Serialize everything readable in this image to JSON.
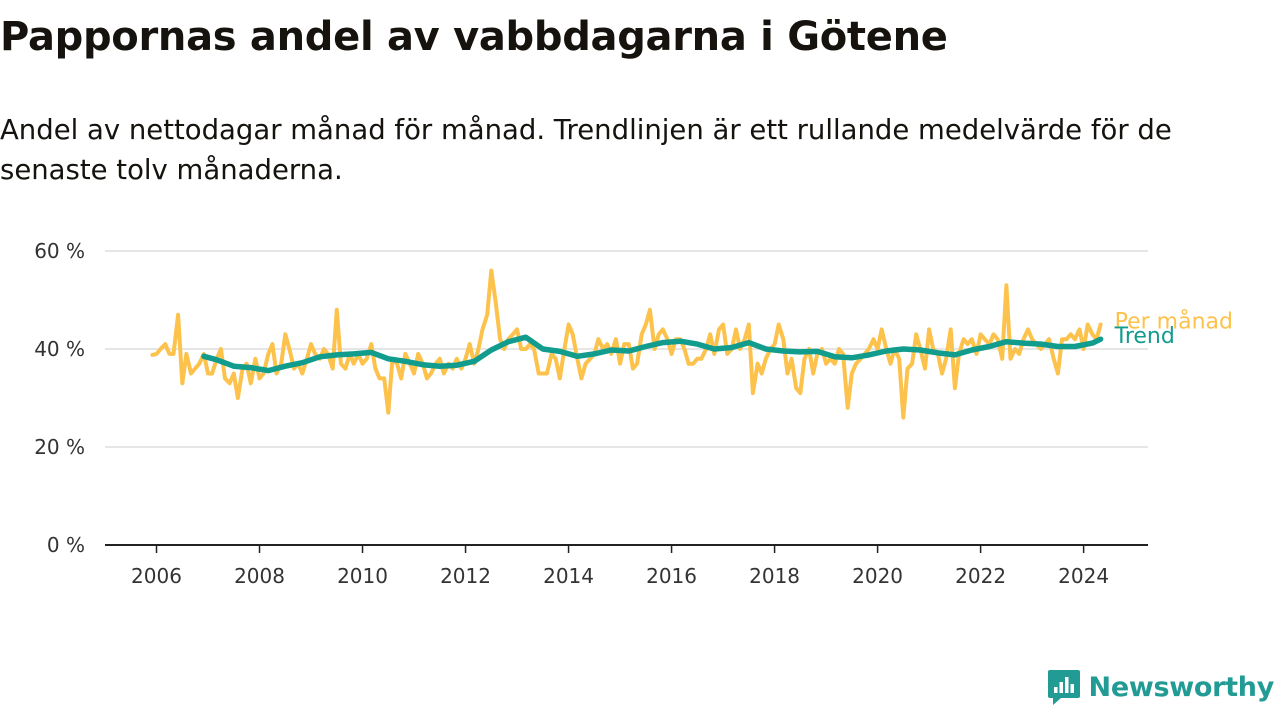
{
  "header": {
    "title": "Pappornas andel av vabbdagarna i Götene",
    "subtitle": "Andel av nettodagar månad för månad. Trendlinjen är ett rullande medelvärde för de senaste tolv månaderna."
  },
  "brand": {
    "name": "Newsworthy",
    "icon": "newsworthy-logo-icon",
    "color": "#229b95"
  },
  "colors": {
    "monthly": "#fcc24c",
    "trend": "#129c8e",
    "grid": "#dddddd",
    "axis": "#222222"
  },
  "chart_data": {
    "type": "line",
    "title": "Pappornas andel av vabbdagarna i Götene",
    "xlabel": "",
    "ylabel": "",
    "x_ticks": [
      "2006",
      "2008",
      "2010",
      "2012",
      "2014",
      "2016",
      "2018",
      "2020",
      "2022",
      "2024"
    ],
    "y_ticks": [
      "0 %",
      "20 %",
      "40 %",
      "60 %"
    ],
    "xlim": [
      2005.0,
      2025.25
    ],
    "ylim": [
      0,
      60
    ],
    "grid": true,
    "legend": "inline labels at right end of lines",
    "series": [
      {
        "name": "Per månad",
        "points": [
          [
            2005.92,
            38.8
          ],
          [
            2006.0,
            39
          ],
          [
            2006.08,
            40
          ],
          [
            2006.17,
            41
          ],
          [
            2006.25,
            39
          ],
          [
            2006.33,
            39
          ],
          [
            2006.42,
            47
          ],
          [
            2006.5,
            33
          ],
          [
            2006.58,
            39
          ],
          [
            2006.67,
            35
          ],
          [
            2006.75,
            36
          ],
          [
            2006.83,
            37
          ],
          [
            2006.92,
            39
          ],
          [
            2007.0,
            35
          ],
          [
            2007.08,
            35
          ],
          [
            2007.17,
            38
          ],
          [
            2007.25,
            40
          ],
          [
            2007.33,
            34
          ],
          [
            2007.42,
            33
          ],
          [
            2007.5,
            35
          ],
          [
            2007.58,
            30
          ],
          [
            2007.67,
            36
          ],
          [
            2007.75,
            37
          ],
          [
            2007.83,
            33
          ],
          [
            2007.92,
            38
          ],
          [
            2008.0,
            34
          ],
          [
            2008.08,
            35
          ],
          [
            2008.17,
            39
          ],
          [
            2008.25,
            41
          ],
          [
            2008.33,
            35
          ],
          [
            2008.42,
            37
          ],
          [
            2008.5,
            43
          ],
          [
            2008.58,
            40
          ],
          [
            2008.67,
            36
          ],
          [
            2008.75,
            37
          ],
          [
            2008.83,
            35
          ],
          [
            2008.92,
            38
          ],
          [
            2009.0,
            41
          ],
          [
            2009.08,
            39
          ],
          [
            2009.17,
            38
          ],
          [
            2009.25,
            40
          ],
          [
            2009.33,
            39
          ],
          [
            2009.42,
            36
          ],
          [
            2009.5,
            48
          ],
          [
            2009.58,
            37
          ],
          [
            2009.67,
            36
          ],
          [
            2009.75,
            39
          ],
          [
            2009.83,
            37
          ],
          [
            2009.92,
            39
          ],
          [
            2010.0,
            37
          ],
          [
            2010.08,
            38
          ],
          [
            2010.17,
            41
          ],
          [
            2010.25,
            36
          ],
          [
            2010.33,
            34
          ],
          [
            2010.42,
            34
          ],
          [
            2010.5,
            27
          ],
          [
            2010.58,
            38
          ],
          [
            2010.67,
            37
          ],
          [
            2010.75,
            34
          ],
          [
            2010.83,
            39
          ],
          [
            2010.92,
            37
          ],
          [
            2011.0,
            35
          ],
          [
            2011.08,
            39
          ],
          [
            2011.17,
            37
          ],
          [
            2011.25,
            34
          ],
          [
            2011.33,
            35
          ],
          [
            2011.42,
            37
          ],
          [
            2011.5,
            38
          ],
          [
            2011.58,
            35
          ],
          [
            2011.67,
            37
          ],
          [
            2011.75,
            36
          ],
          [
            2011.83,
            38
          ],
          [
            2011.92,
            36
          ],
          [
            2012.0,
            38
          ],
          [
            2012.08,
            41
          ],
          [
            2012.17,
            37
          ],
          [
            2012.25,
            40
          ],
          [
            2012.33,
            44
          ],
          [
            2012.42,
            47
          ],
          [
            2012.5,
            56
          ],
          [
            2012.58,
            50
          ],
          [
            2012.67,
            42
          ],
          [
            2012.75,
            40
          ],
          [
            2012.83,
            42
          ],
          [
            2012.92,
            43
          ],
          [
            2013.0,
            44
          ],
          [
            2013.08,
            40
          ],
          [
            2013.17,
            40
          ],
          [
            2013.25,
            41
          ],
          [
            2013.33,
            40
          ],
          [
            2013.42,
            35
          ],
          [
            2013.5,
            35
          ],
          [
            2013.58,
            35
          ],
          [
            2013.67,
            39
          ],
          [
            2013.75,
            38
          ],
          [
            2013.83,
            34
          ],
          [
            2013.92,
            40
          ],
          [
            2014.0,
            45
          ],
          [
            2014.08,
            43
          ],
          [
            2014.17,
            38
          ],
          [
            2014.25,
            34
          ],
          [
            2014.33,
            37
          ],
          [
            2014.42,
            38
          ],
          [
            2014.5,
            39
          ],
          [
            2014.58,
            42
          ],
          [
            2014.67,
            40
          ],
          [
            2014.75,
            41
          ],
          [
            2014.83,
            39
          ],
          [
            2014.92,
            42
          ],
          [
            2015.0,
            37
          ],
          [
            2015.08,
            41
          ],
          [
            2015.17,
            41
          ],
          [
            2015.25,
            36
          ],
          [
            2015.33,
            37
          ],
          [
            2015.42,
            43
          ],
          [
            2015.5,
            45
          ],
          [
            2015.58,
            48
          ],
          [
            2015.67,
            40
          ],
          [
            2015.75,
            43
          ],
          [
            2015.83,
            44
          ],
          [
            2015.92,
            42
          ],
          [
            2016.0,
            39
          ],
          [
            2016.08,
            42
          ],
          [
            2016.17,
            42
          ],
          [
            2016.25,
            40
          ],
          [
            2016.33,
            37
          ],
          [
            2016.42,
            37
          ],
          [
            2016.5,
            38
          ],
          [
            2016.58,
            38
          ],
          [
            2016.67,
            40
          ],
          [
            2016.75,
            43
          ],
          [
            2016.83,
            39
          ],
          [
            2016.92,
            44
          ],
          [
            2017.0,
            45
          ],
          [
            2017.08,
            39
          ],
          [
            2017.17,
            40
          ],
          [
            2017.25,
            44
          ],
          [
            2017.33,
            40
          ],
          [
            2017.42,
            42
          ],
          [
            2017.5,
            45
          ],
          [
            2017.58,
            31
          ],
          [
            2017.67,
            37
          ],
          [
            2017.75,
            35
          ],
          [
            2017.83,
            38
          ],
          [
            2017.92,
            40
          ],
          [
            2018.0,
            41
          ],
          [
            2018.08,
            45
          ],
          [
            2018.17,
            42
          ],
          [
            2018.25,
            35
          ],
          [
            2018.33,
            38
          ],
          [
            2018.42,
            32
          ],
          [
            2018.5,
            31
          ],
          [
            2018.58,
            38
          ],
          [
            2018.67,
            40
          ],
          [
            2018.75,
            35
          ],
          [
            2018.83,
            39
          ],
          [
            2018.92,
            40
          ],
          [
            2019.0,
            37
          ],
          [
            2019.08,
            38
          ],
          [
            2019.17,
            37
          ],
          [
            2019.25,
            40
          ],
          [
            2019.33,
            39
          ],
          [
            2019.42,
            28
          ],
          [
            2019.5,
            35
          ],
          [
            2019.58,
            37
          ],
          [
            2019.67,
            38
          ],
          [
            2019.75,
            39
          ],
          [
            2019.83,
            40
          ],
          [
            2019.92,
            42
          ],
          [
            2020.0,
            40
          ],
          [
            2020.08,
            44
          ],
          [
            2020.17,
            40
          ],
          [
            2020.25,
            37
          ],
          [
            2020.33,
            40
          ],
          [
            2020.42,
            38
          ],
          [
            2020.5,
            26
          ],
          [
            2020.58,
            36
          ],
          [
            2020.67,
            37
          ],
          [
            2020.75,
            43
          ],
          [
            2020.83,
            40
          ],
          [
            2020.92,
            36
          ],
          [
            2021.0,
            44
          ],
          [
            2021.08,
            40
          ],
          [
            2021.17,
            39
          ],
          [
            2021.25,
            35
          ],
          [
            2021.33,
            38
          ],
          [
            2021.42,
            44
          ],
          [
            2021.5,
            32
          ],
          [
            2021.58,
            39
          ],
          [
            2021.67,
            42
          ],
          [
            2021.75,
            41
          ],
          [
            2021.83,
            42
          ],
          [
            2021.92,
            39
          ],
          [
            2022.0,
            43
          ],
          [
            2022.08,
            42
          ],
          [
            2022.17,
            41
          ],
          [
            2022.25,
            43
          ],
          [
            2022.33,
            42
          ],
          [
            2022.42,
            38
          ],
          [
            2022.5,
            53
          ],
          [
            2022.58,
            38
          ],
          [
            2022.67,
            40
          ],
          [
            2022.75,
            39
          ],
          [
            2022.83,
            42
          ],
          [
            2022.92,
            44
          ],
          [
            2023.0,
            42
          ],
          [
            2023.08,
            41
          ],
          [
            2023.17,
            40
          ],
          [
            2023.25,
            41
          ],
          [
            2023.33,
            42
          ],
          [
            2023.42,
            38
          ],
          [
            2023.5,
            35
          ],
          [
            2023.58,
            42
          ],
          [
            2023.67,
            42
          ],
          [
            2023.75,
            43
          ],
          [
            2023.83,
            42
          ],
          [
            2023.92,
            44
          ],
          [
            2024.0,
            40
          ],
          [
            2024.08,
            45
          ],
          [
            2024.17,
            43
          ],
          [
            2024.25,
            42
          ],
          [
            2024.33,
            45
          ]
        ]
      },
      {
        "name": "Trend",
        "points": [
          [
            2006.92,
            38.5
          ],
          [
            2007.17,
            37.8
          ],
          [
            2007.5,
            36.5
          ],
          [
            2007.83,
            36.2
          ],
          [
            2008.17,
            35.6
          ],
          [
            2008.5,
            36.5
          ],
          [
            2008.83,
            37.2
          ],
          [
            2009.17,
            38.4
          ],
          [
            2009.5,
            38.8
          ],
          [
            2009.83,
            39.0
          ],
          [
            2010.17,
            39.3
          ],
          [
            2010.5,
            38.0
          ],
          [
            2010.83,
            37.5
          ],
          [
            2011.17,
            36.8
          ],
          [
            2011.5,
            36.5
          ],
          [
            2011.83,
            36.7
          ],
          [
            2012.17,
            37.5
          ],
          [
            2012.5,
            39.8
          ],
          [
            2012.83,
            41.5
          ],
          [
            2013.17,
            42.4
          ],
          [
            2013.5,
            40.0
          ],
          [
            2013.83,
            39.5
          ],
          [
            2014.17,
            38.5
          ],
          [
            2014.5,
            39.0
          ],
          [
            2014.83,
            39.8
          ],
          [
            2015.17,
            39.6
          ],
          [
            2015.5,
            40.5
          ],
          [
            2015.83,
            41.3
          ],
          [
            2016.17,
            41.6
          ],
          [
            2016.5,
            41.0
          ],
          [
            2016.83,
            40.0
          ],
          [
            2017.17,
            40.3
          ],
          [
            2017.5,
            41.3
          ],
          [
            2017.83,
            40.0
          ],
          [
            2018.17,
            39.6
          ],
          [
            2018.5,
            39.4
          ],
          [
            2018.83,
            39.5
          ],
          [
            2019.17,
            38.4
          ],
          [
            2019.5,
            38.2
          ],
          [
            2019.83,
            38.8
          ],
          [
            2020.17,
            39.6
          ],
          [
            2020.5,
            40.0
          ],
          [
            2020.83,
            39.8
          ],
          [
            2021.17,
            39.2
          ],
          [
            2021.5,
            38.8
          ],
          [
            2021.83,
            39.8
          ],
          [
            2022.17,
            40.5
          ],
          [
            2022.5,
            41.5
          ],
          [
            2022.83,
            41.2
          ],
          [
            2023.17,
            41.0
          ],
          [
            2023.5,
            40.5
          ],
          [
            2023.83,
            40.5
          ],
          [
            2024.17,
            41.2
          ],
          [
            2024.33,
            42.0
          ]
        ]
      }
    ]
  }
}
